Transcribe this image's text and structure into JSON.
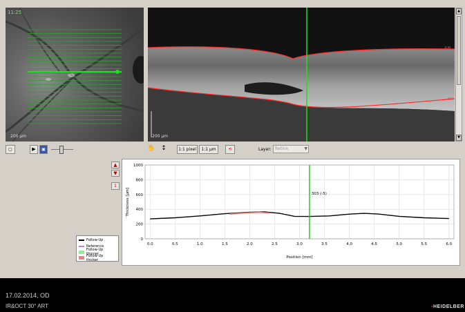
{
  "fundus": {
    "corner_label": "11:25",
    "scale_label": "200 µm",
    "scan_line_count": 25
  },
  "oct": {
    "scale_label": "200 µm",
    "top_layer_label": "ILM",
    "bottom_layer_label": "BM"
  },
  "toolbar": {
    "scale_pixel_label": "1:1 pixel",
    "scale_um_label": "1:1 µm",
    "layer_label": "Layer:",
    "layer_value": "Retina"
  },
  "side_controls": {
    "page_number": "1"
  },
  "legend": {
    "items": [
      {
        "label": "Follow-Up",
        "color": "#000000",
        "kind": "line"
      },
      {
        "label": "Reference",
        "color": "#c080c0",
        "kind": "line"
      },
      {
        "label": "Follow-Up thinner",
        "color": "#90ee90",
        "kind": "box"
      },
      {
        "label": "Follow-Up thicker",
        "color": "#f08080",
        "kind": "box"
      }
    ]
  },
  "chart_data": {
    "type": "line",
    "xlabel": "Position [mm]",
    "ylabel": "Thickness [µm]",
    "xlim": [
      -0.1,
      6.1
    ],
    "ylim": [
      0,
      1000
    ],
    "xticks": [
      "0.0",
      "0.5",
      "1.0",
      "1.5",
      "2.0",
      "2.5",
      "3.0",
      "3.5",
      "4.0",
      "4.5",
      "5.0",
      "5.5",
      "6.0"
    ],
    "yticks": [
      "0",
      "200",
      "400",
      "600",
      "800",
      "1000"
    ],
    "grid": true,
    "cursor": {
      "x": 3.2,
      "label": "303 (-5)",
      "color": "#22cc22"
    },
    "series": [
      {
        "name": "Follow-Up",
        "color": "#000000",
        "x": [
          0.0,
          0.5,
          1.0,
          1.5,
          2.0,
          2.3,
          2.6,
          2.9,
          3.2,
          3.6,
          4.0,
          4.3,
          4.6,
          5.0,
          5.5,
          6.0
        ],
        "values": [
          270,
          285,
          310,
          340,
          360,
          365,
          345,
          305,
          303,
          310,
          335,
          345,
          335,
          305,
          285,
          275
        ]
      },
      {
        "name": "Follow-Up thicker",
        "color": "#f08080",
        "x": [
          1.6,
          1.8,
          2.0,
          2.2,
          2.4
        ],
        "values": [
          335,
          345,
          352,
          358,
          350
        ]
      }
    ]
  },
  "footer": {
    "date": "17.02.2014, OD",
    "device": "IR&OCT 30° ART",
    "brand": "HEIDELBER"
  }
}
